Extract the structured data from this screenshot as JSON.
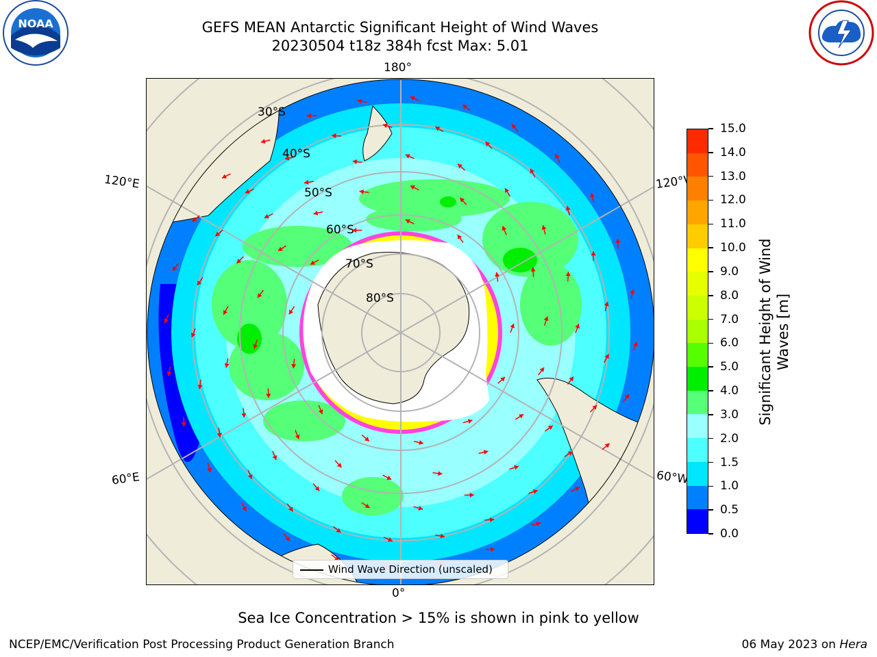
{
  "title_line1": "GEFS MEAN Antarctic Significant Height of Wind Waves",
  "title_line2": "20230504 t18z 384h fcst   Max: 5.01",
  "logos": {
    "left": "noaa-logo",
    "right": "national-weather-service-logo"
  },
  "map": {
    "projection": "south-polar-stereographic",
    "lon_labels": {
      "top": "180°",
      "bottom": "0°",
      "upper_left": "120°E",
      "upper_right": "120°W",
      "lower_left": "60°E",
      "lower_right": "60°W"
    },
    "lat_labels": [
      "30°S",
      "40°S",
      "50°S",
      "60°S",
      "70°S",
      "80°S"
    ],
    "colors": {
      "land": "#efedda",
      "ice_edge": "#ff44dd",
      "arrows": "#ff0000",
      "grid": "#b3b3b3"
    }
  },
  "legend": {
    "label": "Wind Wave Direction (unscaled)"
  },
  "colorbar": {
    "label": "Significant Height of Wind Waves [m]",
    "ticks": [
      "0.0",
      "0.5",
      "1.0",
      "1.5",
      "2.0",
      "3.0",
      "4.0",
      "5.0",
      "6.0",
      "7.0",
      "8.0",
      "9.0",
      "10.0",
      "11.0",
      "12.0",
      "13.0",
      "14.0",
      "15.0"
    ],
    "colors": [
      "#0000ff",
      "#0080ff",
      "#00e6ff",
      "#4dffff",
      "#99ffff",
      "#55ff77",
      "#00ee00",
      "#55ff00",
      "#aaff00",
      "#ccff00",
      "#e6ff00",
      "#ffff00",
      "#ffcc00",
      "#ffa500",
      "#ff8000",
      "#ff5500",
      "#ff2a00"
    ]
  },
  "ice_note": "Sea Ice Concentration > 15% is shown in pink to yellow",
  "footer": {
    "left": "NCEP/EMC/Verification Post Processing Product Generation Branch",
    "date": "06 May 2023 on ",
    "host": "Hera"
  }
}
